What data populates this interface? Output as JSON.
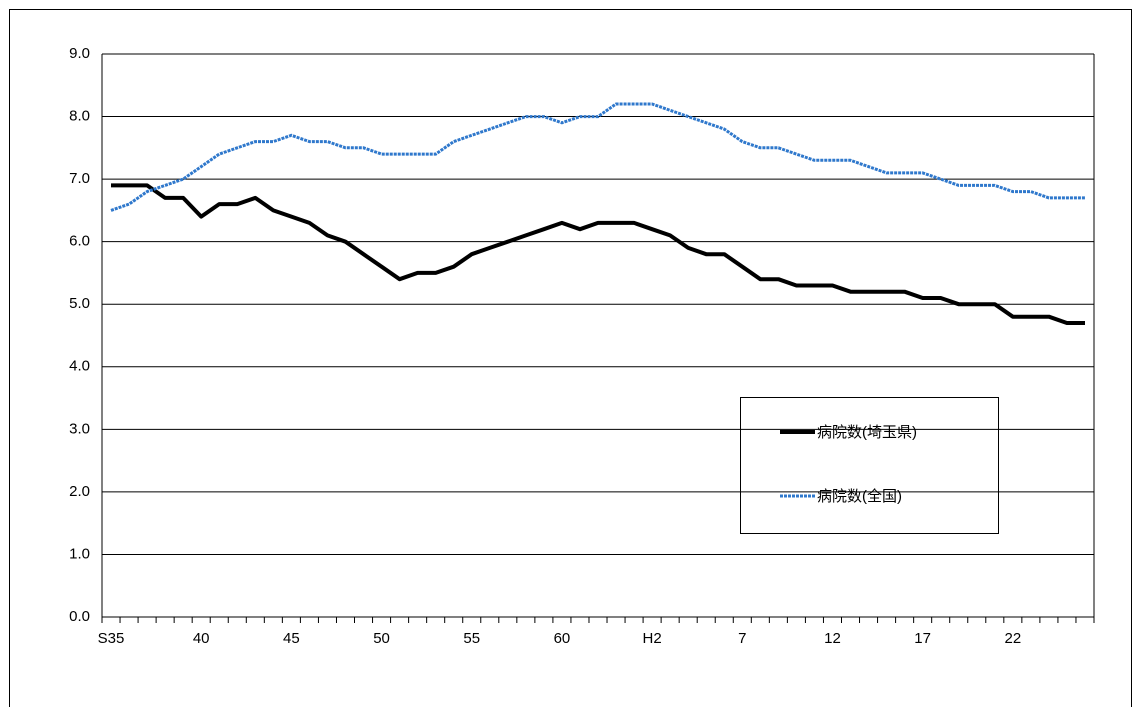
{
  "chart_data": {
    "type": "line",
    "categories": [
      "S35",
      null,
      null,
      null,
      null,
      "40",
      null,
      null,
      null,
      null,
      "45",
      null,
      null,
      null,
      null,
      "50",
      null,
      null,
      null,
      null,
      "55",
      null,
      null,
      null,
      null,
      "60",
      null,
      null,
      null,
      null,
      "H2",
      null,
      null,
      null,
      null,
      "7",
      null,
      null,
      null,
      null,
      "12",
      null,
      null,
      null,
      null,
      "17",
      null,
      null,
      null,
      null,
      "22",
      null,
      null,
      null,
      null
    ],
    "series": [
      {
        "name": "病院数(埼玉県)",
        "color": "#000000",
        "style": "solid",
        "values": [
          6.9,
          6.9,
          6.9,
          6.7,
          6.7,
          6.4,
          6.6,
          6.6,
          6.7,
          6.5,
          6.4,
          6.3,
          6.1,
          6.0,
          5.8,
          5.6,
          5.4,
          5.5,
          5.5,
          5.6,
          5.8,
          5.9,
          6.0,
          6.1,
          6.2,
          6.3,
          6.2,
          6.3,
          6.3,
          6.3,
          6.2,
          6.1,
          5.9,
          5.8,
          5.8,
          5.6,
          5.4,
          5.4,
          5.3,
          5.3,
          5.3,
          5.2,
          5.2,
          5.2,
          5.2,
          5.1,
          5.1,
          5.0,
          5.0,
          5.0,
          4.8,
          4.8,
          4.8,
          4.7,
          4.7
        ]
      },
      {
        "name": "病院数(全国)",
        "color": "#2f78cc",
        "style": "dotted",
        "values": [
          6.5,
          6.6,
          6.8,
          6.9,
          7.0,
          7.2,
          7.4,
          7.5,
          7.6,
          7.6,
          7.7,
          7.6,
          7.6,
          7.5,
          7.5,
          7.4,
          7.4,
          7.4,
          7.4,
          7.6,
          7.7,
          7.8,
          7.9,
          8.0,
          8.0,
          7.9,
          8.0,
          8.0,
          8.2,
          8.2,
          8.2,
          8.1,
          8.0,
          7.9,
          7.8,
          7.6,
          7.5,
          7.5,
          7.4,
          7.3,
          7.3,
          7.3,
          7.2,
          7.1,
          7.1,
          7.1,
          7.0,
          6.9,
          6.9,
          6.9,
          6.8,
          6.8,
          6.7,
          6.7,
          6.7
        ]
      }
    ],
    "ylim": [
      0,
      9
    ],
    "yticks": [
      {
        "value": 0,
        "label": "0.0"
      },
      {
        "value": 1,
        "label": "1.0"
      },
      {
        "value": 2,
        "label": "2.0"
      },
      {
        "value": 3,
        "label": "3.0"
      },
      {
        "value": 4,
        "label": "4.0"
      },
      {
        "value": 5,
        "label": "5.0"
      },
      {
        "value": 6,
        "label": "6.0"
      },
      {
        "value": 7,
        "label": "7.0"
      },
      {
        "value": 8,
        "label": "8.0"
      },
      {
        "value": 9,
        "label": "9.0"
      }
    ],
    "grid": true
  }
}
